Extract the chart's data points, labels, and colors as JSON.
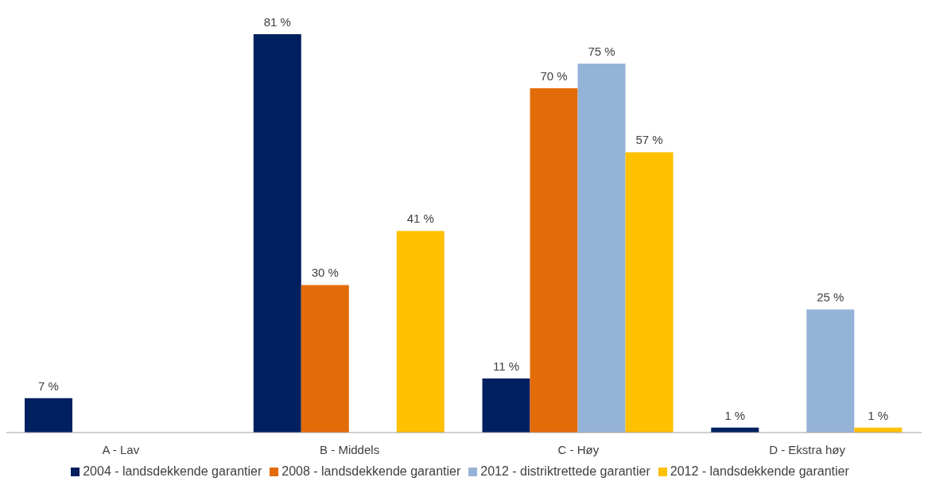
{
  "chart_data": {
    "type": "bar",
    "categories": [
      "A - Lav",
      "B - Middels",
      "C - Høy",
      "D - Ekstra høy"
    ],
    "series": [
      {
        "name": "2004 - landsdekkende garantier",
        "color": "#002060",
        "values": [
          7,
          81,
          11,
          1
        ],
        "value_labels": [
          "7 %",
          "81 %",
          "11 %",
          "1 %"
        ]
      },
      {
        "name": "2008 - landsdekkende garantier",
        "color": "#e36c09",
        "values": [
          null,
          30,
          70,
          null
        ],
        "value_labels": [
          null,
          "30 %",
          "70 %",
          null
        ]
      },
      {
        "name": "2012 - distriktrettede garantier",
        "color": "#95b3d7",
        "values": [
          null,
          null,
          75,
          25
        ],
        "value_labels": [
          null,
          null,
          "75 %",
          "25 %"
        ]
      },
      {
        "name": "2012 - landsdekkende garantier",
        "color": "#ffc000",
        "values": [
          null,
          41,
          57,
          1
        ],
        "value_labels": [
          null,
          "41 %",
          "57 %",
          "1 %"
        ]
      }
    ],
    "legend": "bottom",
    "grid": false
  }
}
